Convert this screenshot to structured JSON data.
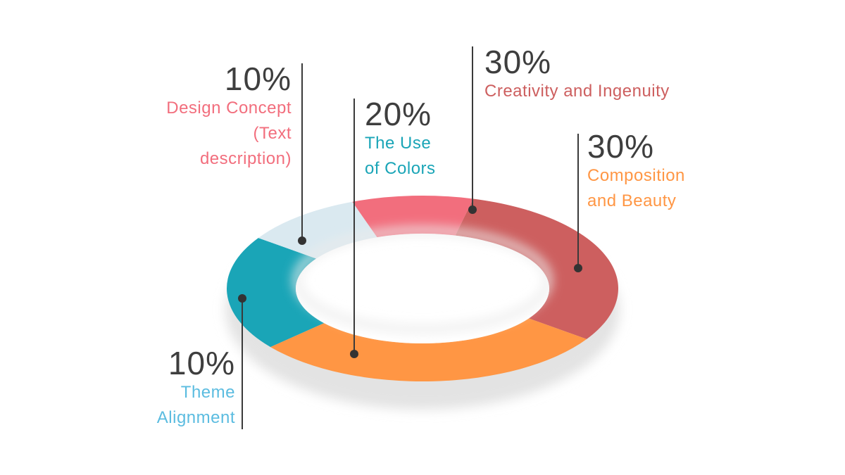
{
  "chart_data": {
    "type": "pie",
    "style": "3d-donut",
    "legend": "none",
    "slices": [
      {
        "percent_label": "30%",
        "value": 30,
        "label_lines": [
          "Creativity and Ingenuity"
        ],
        "color": "#CD5F5F"
      },
      {
        "percent_label": "30%",
        "value": 30,
        "label_lines": [
          "Composition",
          "and Beauty"
        ],
        "color": "#FF9644"
      },
      {
        "percent_label": "20%",
        "value": 20,
        "label_lines": [
          "The Use",
          "of Colors"
        ],
        "color": "#1AA5B7"
      },
      {
        "percent_label": "10%",
        "value": 10,
        "label_lines": [
          "Theme",
          "Alignment"
        ],
        "color": "#DAE9F0"
      },
      {
        "percent_label": "10%",
        "value": 10,
        "label_lines": [
          "Design Concept",
          "(Text",
          "description)"
        ],
        "color": "#F26E7D"
      }
    ]
  },
  "label_colors": {
    "creativity": "#CD5F5F",
    "composition": "#FF9644",
    "colors": "#1AA5B7",
    "theme": "#5BBCE0",
    "concept": "#F26E7D"
  }
}
